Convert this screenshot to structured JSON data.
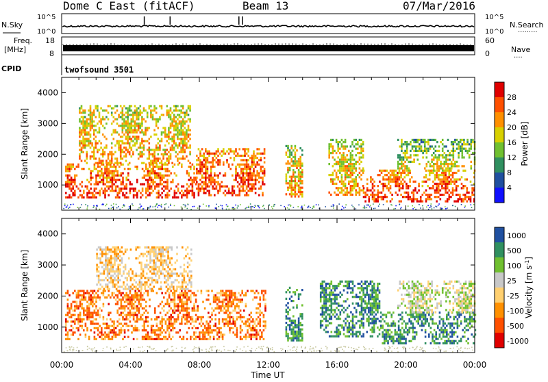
{
  "header": {
    "station": "Dome C East (fitACF)",
    "beam": "Beam 13",
    "date": "07/Mar/2016"
  },
  "left_labels": {
    "nsky": "N.Sky",
    "freq_top": "Freq.",
    "freq_unit": "[MHz]",
    "cpid": "CPID"
  },
  "right_labels": {
    "nsearch": "N.Search",
    "nsearch_dots": "·········",
    "nave": "Nave",
    "nave_dots": "····"
  },
  "cpid_text": "twofsound 3501",
  "noise_axis": {
    "top": "10^5",
    "bottom": "10^0"
  },
  "freq_axis": {
    "top": "18",
    "bottom": "8"
  },
  "nave_axis": {
    "top": "60",
    "bottom": "0"
  },
  "xlabel": "Time UT",
  "x_ticks": [
    "00:00",
    "04:00",
    "08:00",
    "12:00",
    "16:00",
    "20:00",
    "00:00"
  ],
  "colors": {
    "power": [
      "#1010ff",
      "#2050a0",
      "#309060",
      "#70c030",
      "#d8d000",
      "#ff9000",
      "#ff5000",
      "#e00000"
    ],
    "velocity": [
      "#e00000",
      "#ff5000",
      "#ff9000",
      "#ffd070",
      "#c8c8c8",
      "#70c030",
      "#309060",
      "#2050a0"
    ]
  },
  "chart_data": [
    {
      "type": "heatmap",
      "title": "",
      "xlabel": "Time UT",
      "ylabel": "Slant Range [km]",
      "xlim": [
        "00:00",
        "24:00"
      ],
      "ylim": [
        180,
        4500
      ],
      "y_ticks": [
        1000,
        2000,
        3000,
        4000
      ],
      "colorbar": {
        "label": "Power [dB]",
        "ticks": [
          4,
          8,
          12,
          16,
          20,
          24,
          28
        ],
        "range": [
          0,
          30
        ]
      },
      "echo_regions": [
        {
          "t": [
            0.2,
            7.8
          ],
          "r": [
            600,
            1700
          ],
          "level": "high"
        },
        {
          "t": [
            1.0,
            7.5
          ],
          "r": [
            1700,
            3600
          ],
          "level": "medium"
        },
        {
          "t": [
            7.8,
            11.8
          ],
          "r": [
            700,
            2200
          ],
          "level": "high"
        },
        {
          "t": [
            13.0,
            14.0
          ],
          "r": [
            600,
            2300
          ],
          "level": "medium"
        },
        {
          "t": [
            15.5,
            17.5
          ],
          "r": [
            700,
            2500
          ],
          "level": "medium"
        },
        {
          "t": [
            17.5,
            24.0
          ],
          "r": [
            500,
            1500
          ],
          "level": "high"
        },
        {
          "t": [
            19.5,
            24.0
          ],
          "r": [
            1500,
            2500
          ],
          "level": "low"
        }
      ]
    },
    {
      "type": "heatmap",
      "title": "",
      "xlabel": "Time UT",
      "ylabel": "Slant Range [km]",
      "xlim": [
        "00:00",
        "24:00"
      ],
      "ylim": [
        180,
        4500
      ],
      "y_ticks": [
        1000,
        2000,
        3000,
        4000
      ],
      "colorbar": {
        "label": "Velocity [m s^-1]",
        "ticks": [
          1000,
          500,
          100,
          25,
          -25,
          -100,
          -500,
          -1000
        ]
      },
      "echo_regions": [
        {
          "t": [
            0.2,
            11.8
          ],
          "r": [
            600,
            2200
          ],
          "sign": "negative"
        },
        {
          "t": [
            2.0,
            7.5
          ],
          "r": [
            2200,
            3600
          ],
          "sign": "mixed"
        },
        {
          "t": [
            13.0,
            14.0
          ],
          "r": [
            600,
            2300
          ],
          "sign": "positive"
        },
        {
          "t": [
            15.0,
            18.5
          ],
          "r": [
            700,
            2500
          ],
          "sign": "positive"
        },
        {
          "t": [
            18.5,
            24.0
          ],
          "r": [
            500,
            1500
          ],
          "sign": "positive"
        },
        {
          "t": [
            19.5,
            24.0
          ],
          "r": [
            1500,
            2500
          ],
          "sign": "near-zero"
        }
      ]
    }
  ]
}
